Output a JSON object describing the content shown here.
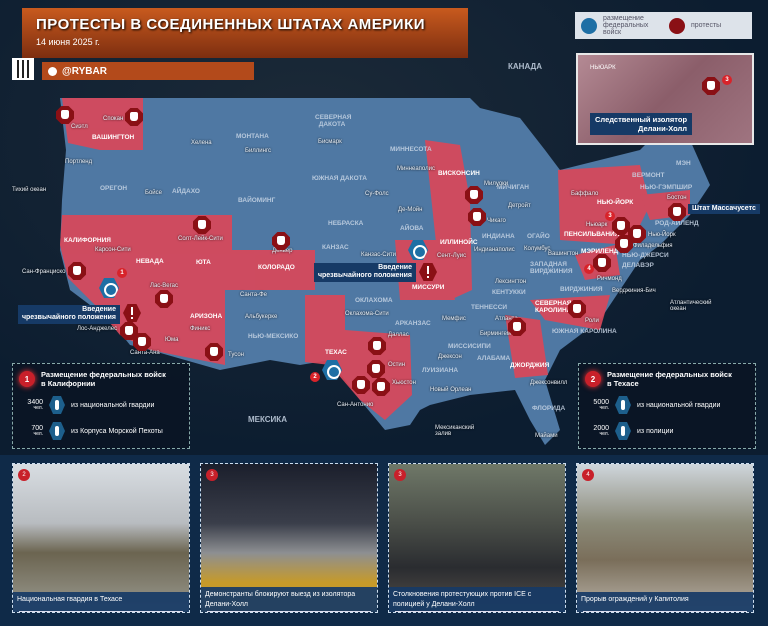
{
  "header": {
    "title": "ПРОТЕСТЫ В СОЕДИНЕННЫХ ШТАТАХ АМЕРИКИ",
    "date": "14 июня 2025 г.",
    "channel": "@RYBAR"
  },
  "legend": {
    "federal": "размещение федеральных войск",
    "protests": "протесты"
  },
  "inset": {
    "city": "НЬЮАРК",
    "caption_1": "Следственный изолятор",
    "caption_2": "Делани-Холл",
    "badge": "3"
  },
  "map": {
    "countries": {
      "canada": "КАНАДА",
      "mexico": "МЕКСИКА"
    },
    "water": {
      "pacific": "Тихий океан",
      "atlantic": "Атлантический океан",
      "gulf": "Мексиканский залив"
    },
    "states": {
      "wa": "ВАШИНГТОН",
      "or": "ОРЕГОН",
      "id": "АЙДАХО",
      "mt": "МОНТАНА",
      "wy": "ВАЙОМИНГ",
      "nd": "СЕВЕРНАЯ ДАКОТА",
      "sd": "ЮЖНАЯ ДАКОТА",
      "ne": "НЕБРАСКА",
      "ks": "КАНЗАС",
      "ok": "ОКЛАХОМА",
      "ca": "КАЛИФОРНИЯ",
      "nv": "НЕВАДА",
      "ut": "ЮТА",
      "co": "КОЛОРАДО",
      "az": "АРИЗОНА",
      "nm": "НЬЮ-МЕКСИКО",
      "tx": "ТЕХАС",
      "mn": "МИННЕСОТА",
      "wi": "ВИСКОНСИН",
      "ia": "АЙОВА",
      "il": "ИЛЛИНОЙС",
      "mo": "МИССУРИ",
      "mi": "МИЧИГАН",
      "in": "ИНДИАНА",
      "oh": "ОГАЙО",
      "ky": "КЕНТУККИ",
      "tn": "ТЕННЕССИ",
      "ar": "АРКАНЗАС",
      "la": "ЛУИЗИАНА",
      "ms": "МИССИСИПИ",
      "al": "АЛАБАМА",
      "ga": "ДЖОРДЖИЯ",
      "fl": "ФЛОРИДА",
      "sc": "ЮЖНАЯ КАРОЛИНА",
      "nc": "СЕВЕРНАЯ КАРОЛИНА",
      "va": "ВИРДЖИНИЯ",
      "wv": "ЗАПАДНАЯ ВИРДЖИНИЯ",
      "pa": "ПЕНСИЛЬВАНИЯ",
      "ny": "НЬЮ-ЙОРК",
      "md": "МЭРИЛЕНД",
      "nj": "НЬЮ-ДЖЕРСИ",
      "de": "ДЕЛАВЭР",
      "vt": "ВЕРМОНТ",
      "nh": "НЬЮ-ГЭМПШИР",
      "me": "МЭН",
      "ri": "РОД-АЙЛЕНД",
      "ma": "Штат Массачусетс"
    },
    "cities": {
      "seattle": "Сиэтл",
      "spokane": "Спокан",
      "portland": "Портленд",
      "helena": "Хелена",
      "billings": "Биллингс",
      "bismarck": "Бисмарк",
      "boise": "Бойсе",
      "siouxfalls": "Су-Фолс",
      "sf": "Сан-Франциско",
      "carson": "Карсон-Сити",
      "slc": "Солт-Лейк-Сити",
      "denver": "Денвер",
      "lv": "Лас-Вегас",
      "la": "Лос-Анджелес",
      "santaana": "Санта-Ана",
      "yuma": "Юма",
      "phoenix": "Финикс",
      "tucson": "Тусон",
      "santafe": "Санта-Фе",
      "albuquerque": "Альбукерке",
      "okc": "Оклахома-Сити",
      "kc": "Канзас-Сити",
      "dallas": "Даллас",
      "austin": "Остин",
      "sa": "Сан-Антонио",
      "houston": "Хьюстон",
      "neworleans": "Новый Орлеан",
      "minneapolis": "Миннеаполис",
      "desmoines": "Де-Мойн",
      "milwaukee": "Милуоки",
      "chicago": "Чикаго",
      "stlouis": "Сент-Луис",
      "detroit": "Детройт",
      "indy": "Индианаполис",
      "columbus": "Колумбус",
      "lexington": "Лексингтон",
      "memphis": "Мемфис",
      "birmingham": "Бирмингем",
      "jackson": "Джексон",
      "atlanta": "Атланта",
      "jacksonville": "Джексонвилл",
      "miami": "Майами",
      "raleigh": "Роли",
      "richmond": "Ричмонд",
      "vb": "Верджиния-Бич",
      "dc": "Вашингтон",
      "buffalo": "Баффало",
      "newark": "Ньюарк",
      "nyc": "Нью-Йорк",
      "philly": "Филадельфия",
      "boston": "Бостон"
    },
    "emergency": {
      "line1": "Введение",
      "line2": "чрезвычайного положения"
    },
    "badges": [
      "1",
      "2",
      "3",
      "4"
    ]
  },
  "panels": [
    {
      "num": "1",
      "title_1": "Размещение федеральных войск",
      "title_2": "в Калифорнии",
      "rows": [
        {
          "qty": "3400",
          "unit": "чел.",
          "icon": "soldier-icon",
          "label": "из национальной гвардии"
        },
        {
          "qty": "700",
          "unit": "чел.",
          "icon": "rifle-icon",
          "label": "из Корпуса Морской Пехоты"
        }
      ]
    },
    {
      "num": "2",
      "title_1": "Размещение федеральных войск",
      "title_2": "в Техасе",
      "rows": [
        {
          "qty": "5000",
          "unit": "чел.",
          "icon": "soldier-icon",
          "label": "из национальной гвардии"
        },
        {
          "qty": "2000",
          "unit": "чел.",
          "icon": "shield-icon",
          "label": "из полиции"
        }
      ]
    }
  ],
  "photos": [
    {
      "num": "2",
      "caption": "Национальная гвардия в Техасе"
    },
    {
      "num": "3",
      "caption": "Демонстранты блокируют выезд из изолятора Делани-Холл"
    },
    {
      "num": "3",
      "caption": "Столкновения протестующих против ICE с полицией у Делани-Холл"
    },
    {
      "num": "4",
      "caption": "Прорыв ограждений у Капитолия"
    }
  ],
  "colors": {
    "protest_state": "#d9485a",
    "other_state": "#4f78a3",
    "accent": "#c85a1e",
    "federal": "#1e6fa5"
  }
}
